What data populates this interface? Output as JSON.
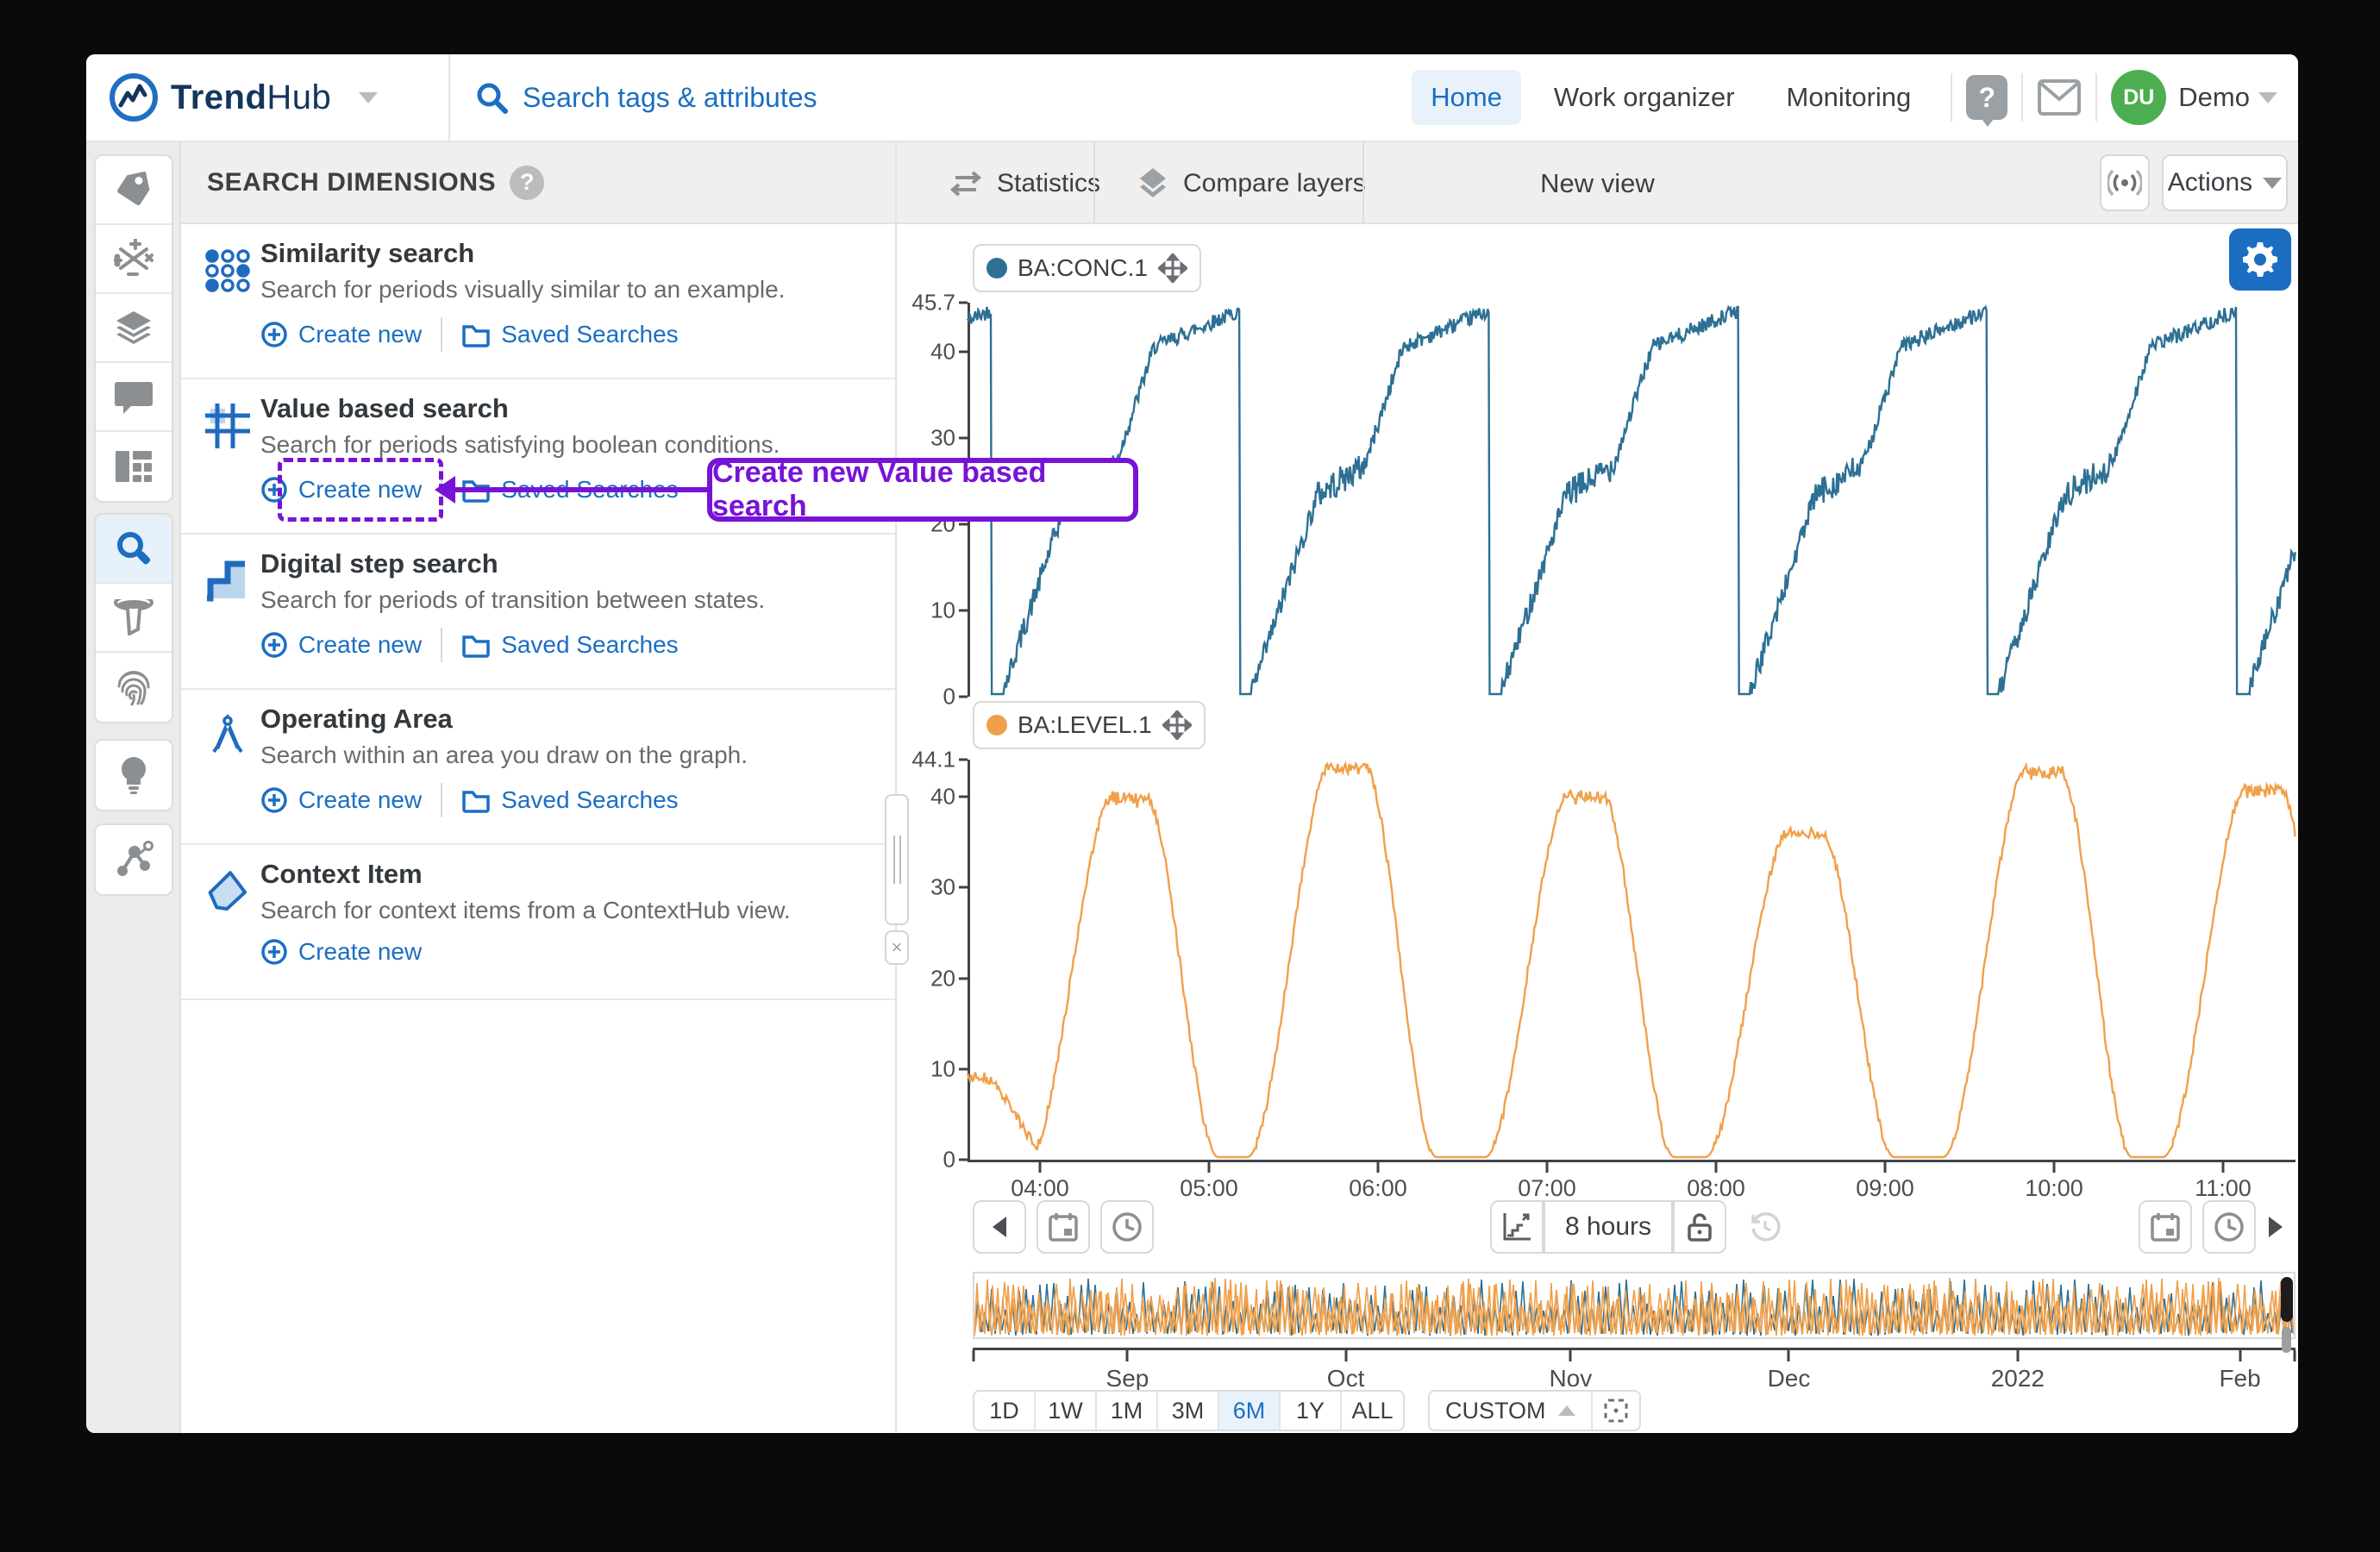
{
  "header": {
    "brand_bold": "Trend",
    "brand_light": "Hub",
    "search_placeholder": "Search tags & attributes",
    "nav": [
      {
        "label": "Home",
        "active": true
      },
      {
        "label": "Work organizer",
        "active": false
      },
      {
        "label": "Monitoring",
        "active": false
      }
    ],
    "avatar_initials": "DU",
    "user_name": "Demo"
  },
  "rail_icons": [
    "tag",
    "calculation",
    "layers",
    "comment",
    "dashboard",
    "search",
    "filter",
    "fingerprint",
    "lightbulb",
    "scatter-nodes"
  ],
  "panel": {
    "title": "SEARCH DIMENSIONS",
    "create_label": "Create new",
    "saved_label": "Saved Searches",
    "items": [
      {
        "title": "Similarity search",
        "desc": "Search for periods visually similar to an example.",
        "saved": true
      },
      {
        "title": "Value based search",
        "desc": "Search for periods satisfying boolean conditions.",
        "saved": true
      },
      {
        "title": "Digital step search",
        "desc": "Search for periods of transition between states.",
        "saved": true
      },
      {
        "title": "Operating Area",
        "desc": "Search within an area you draw on the graph.",
        "saved": true
      },
      {
        "title": "Context Item",
        "desc": "Search for context items from a ContextHub view.",
        "saved": false
      }
    ]
  },
  "callout": {
    "text": "Create new Value based search",
    "color": "#7713d6"
  },
  "toolbar": {
    "statistics": "Statistics",
    "compare_layers": "Compare layers",
    "view_title": "New view",
    "actions": "Actions"
  },
  "controls": {
    "duration": "8 hours"
  },
  "x_axis": {
    "labels": [
      "04:00",
      "05:00",
      "06:00",
      "07:00",
      "08:00",
      "09:00",
      "10:00",
      "11:00"
    ]
  },
  "timeline": {
    "labels": [
      "Sep",
      "Oct",
      "Nov",
      "Dec",
      "2022",
      "Feb"
    ],
    "fractions": [
      0.117,
      0.282,
      0.452,
      0.617,
      0.79,
      0.958
    ]
  },
  "ranges": {
    "buttons": [
      "1D",
      "1W",
      "1M",
      "3M",
      "6M",
      "1Y",
      "ALL"
    ],
    "active": "6M",
    "custom": "CUSTOM"
  },
  "chart_data": [
    {
      "type": "line",
      "name": "BA:CONC.1",
      "color": "#2d7094",
      "y_max": 45.7,
      "y_ticks": [
        45.7,
        40,
        30,
        20,
        10,
        0
      ],
      "x_domain_hours": [
        3.42,
        11.63
      ],
      "pattern": "repeating batch ramp: 0 -> ~24 noisy ramp, slow rise to ~27, steep rise to ~41, noisy plateau to ~45.5, instant drop to 0",
      "period_hours": 1.54,
      "first_drop_hour": 3.565,
      "segments": [
        {
          "phase": [
            0.0,
            0.045
          ],
          "from": 0,
          "to": 0,
          "noise": 0.0
        },
        {
          "phase": [
            0.045,
            0.31
          ],
          "from": 0,
          "to": 23.5,
          "noise": 1.4
        },
        {
          "phase": [
            0.31,
            0.5
          ],
          "from": 23.5,
          "to": 27.0,
          "noise": 1.7
        },
        {
          "phase": [
            0.5,
            0.655
          ],
          "from": 27.0,
          "to": 41.0,
          "noise": 1.0
        },
        {
          "phase": [
            0.655,
            1.0
          ],
          "from": 41.0,
          "to": 45.3,
          "noise": 0.9
        }
      ]
    },
    {
      "type": "line",
      "name": "BA:LEVEL.1",
      "color": "#f0a04a",
      "y_max": 44.1,
      "y_ticks": [
        44.1,
        40,
        30,
        20,
        10,
        0
      ],
      "x_domain_hours": [
        3.42,
        11.63
      ],
      "pattern": "repeating rounded humps rising from 0 to peak and back to 0 with flat zero gaps",
      "peaks": [
        {
          "t": 3.4,
          "v": 9.0
        },
        {
          "t": 4.42,
          "v": 40.5
        },
        {
          "t": 5.77,
          "v": 44.1
        },
        {
          "t": 7.24,
          "v": 40.8
        },
        {
          "t": 8.6,
          "v": 36.5
        },
        {
          "t": 10.07,
          "v": 43.5
        },
        {
          "t": 11.43,
          "v": 41.5
        }
      ],
      "rise_hours": 0.52,
      "top_halfwidth_hours": 0.1,
      "fall_hours": 0.45
    }
  ]
}
